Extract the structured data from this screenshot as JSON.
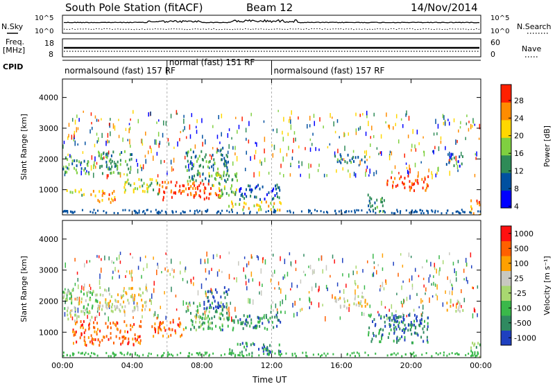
{
  "header": {
    "station": "South Pole Station (fitACF)",
    "beam": "Beam 12",
    "date": "14/Nov/2014"
  },
  "panels_top": {
    "nsky_label": "N.Sky",
    "nsky_ticks": [
      "10^5",
      "10^0"
    ],
    "nsearch_label": "N.Search",
    "nsearch_ticks": [
      "10^5",
      "10^0"
    ],
    "freq_label": "Freq.",
    "freq_unit": "[MHz]",
    "freq_ticks": [
      "18",
      "8"
    ],
    "nave_label": "Nave",
    "nave_ticks": [
      "60",
      "0"
    ],
    "cpid_label": "CPID",
    "cpid_segments": [
      {
        "label": "normalsound (fast) 157 RF",
        "start_hour": 0,
        "end_hour": 6
      },
      {
        "label": "normal (fast) 151 RF",
        "start_hour": 6,
        "end_hour": 12
      },
      {
        "label": "normalsound (fast) 157 RF",
        "start_hour": 12,
        "end_hour": 24
      }
    ]
  },
  "chart_data": [
    {
      "type": "heatmap",
      "title": "",
      "xlabel": "Time UT",
      "ylabel": "Slant Range [km]",
      "xlim": [
        0,
        24
      ],
      "ylim": [
        180,
        4600
      ],
      "x_ticks": [
        "00:00",
        "04:00",
        "08:00",
        "12:00",
        "16:00",
        "20:00",
        "00:00"
      ],
      "y_ticks": [
        "1000",
        "2000",
        "3000",
        "4000"
      ],
      "colorbar": {
        "label": "Power [dB]",
        "ticks": [
          "28",
          "24",
          "20",
          "16",
          "12",
          "8",
          "4"
        ],
        "colors": [
          "#0000ff",
          "#0050a0",
          "#2e8b57",
          "#7fd040",
          "#ffd700",
          "#ff8c00",
          "#ff2000"
        ]
      },
      "regions": [
        {
          "t0": 0.0,
          "t1": 1.5,
          "r0": 1550,
          "r1": 2100,
          "level": 2
        },
        {
          "t0": 1.5,
          "t1": 3.0,
          "r0": 600,
          "r1": 1000,
          "level": 5
        },
        {
          "t0": 0.2,
          "t1": 1.2,
          "r0": 800,
          "r1": 1050,
          "level": 3
        },
        {
          "t0": 2.0,
          "t1": 4.0,
          "r0": 1500,
          "r1": 2300,
          "level": 2
        },
        {
          "t0": 3.5,
          "t1": 5.5,
          "r0": 900,
          "r1": 1400,
          "level": 3
        },
        {
          "t0": 5.5,
          "t1": 9.0,
          "r0": 700,
          "r1": 1300,
          "level": 6
        },
        {
          "t0": 7.0,
          "t1": 9.5,
          "r0": 1300,
          "r1": 2400,
          "level": 2
        },
        {
          "t0": 8.5,
          "t1": 10.0,
          "r0": 800,
          "r1": 1600,
          "level": 3
        },
        {
          "t0": 9.5,
          "t1": 12.5,
          "r0": 350,
          "r1": 650,
          "level": 4
        },
        {
          "t0": 10.0,
          "t1": 12.5,
          "r0": 700,
          "r1": 1200,
          "level": 1
        },
        {
          "t0": 18.5,
          "t1": 21.0,
          "r0": 1000,
          "r1": 1500,
          "level": 6
        },
        {
          "t0": 17.5,
          "t1": 18.5,
          "r0": 300,
          "r1": 900,
          "level": 2
        },
        {
          "t0": 15.5,
          "t1": 17.5,
          "r0": 1900,
          "r1": 2200,
          "level": 2
        },
        {
          "t0": 22.0,
          "t1": 23.0,
          "r0": 1800,
          "r1": 2200,
          "level": 1
        },
        {
          "t0": 23.3,
          "t1": 24.0,
          "r0": 200,
          "r1": 700,
          "level": 5
        }
      ]
    },
    {
      "type": "heatmap",
      "title": "",
      "xlabel": "Time UT",
      "ylabel": "Slant Range [km]",
      "xlim": [
        0,
        24
      ],
      "ylim": [
        180,
        4600
      ],
      "x_ticks": [
        "00:00",
        "04:00",
        "08:00",
        "12:00",
        "16:00",
        "20:00",
        "00:00"
      ],
      "y_ticks": [
        "1000",
        "2000",
        "3000",
        "4000"
      ],
      "colorbar": {
        "label": "Velocity [m s⁻¹]",
        "ticks": [
          "1000",
          "500",
          "100",
          "25",
          "-25",
          "-100",
          "-500",
          "-1000"
        ],
        "colors": [
          "#1e40c0",
          "#2f8a60",
          "#3ab84a",
          "#a8d870",
          "#c8c8c0",
          "#ffa000",
          "#ff6000",
          "#ff1010"
        ]
      },
      "regions": [
        {
          "t0": 0.0,
          "t1": 2.0,
          "r0": 1400,
          "r1": 2400,
          "level": 3
        },
        {
          "t0": 0.5,
          "t1": 4.5,
          "r0": 600,
          "r1": 1400,
          "level": 6
        },
        {
          "t0": 2.0,
          "t1": 5.0,
          "r0": 1700,
          "r1": 2500,
          "level": 4
        },
        {
          "t0": 5.0,
          "t1": 7.0,
          "r0": 900,
          "r1": 1500,
          "level": 6
        },
        {
          "t0": 7.0,
          "t1": 9.5,
          "r0": 1100,
          "r1": 2000,
          "level": 2
        },
        {
          "t0": 8.0,
          "t1": 9.5,
          "r0": 1700,
          "r1": 2500,
          "level": 0
        },
        {
          "t0": 9.0,
          "t1": 12.5,
          "r0": 1100,
          "r1": 1700,
          "level": 1
        },
        {
          "t0": 9.5,
          "t1": 12.5,
          "r0": 300,
          "r1": 700,
          "level": 1
        },
        {
          "t0": 15.5,
          "t1": 17.5,
          "r0": 1800,
          "r1": 2200,
          "level": 4
        },
        {
          "t0": 17.5,
          "t1": 21.0,
          "r0": 700,
          "r1": 1600,
          "level": 1
        },
        {
          "t0": 18.5,
          "t1": 20.5,
          "r0": 1200,
          "r1": 1600,
          "level": 0
        },
        {
          "t0": 22.0,
          "t1": 23.0,
          "r0": 1700,
          "r1": 2100,
          "level": 4
        },
        {
          "t0": 23.3,
          "t1": 24.0,
          "r0": 200,
          "r1": 700,
          "level": 2
        }
      ]
    }
  ]
}
